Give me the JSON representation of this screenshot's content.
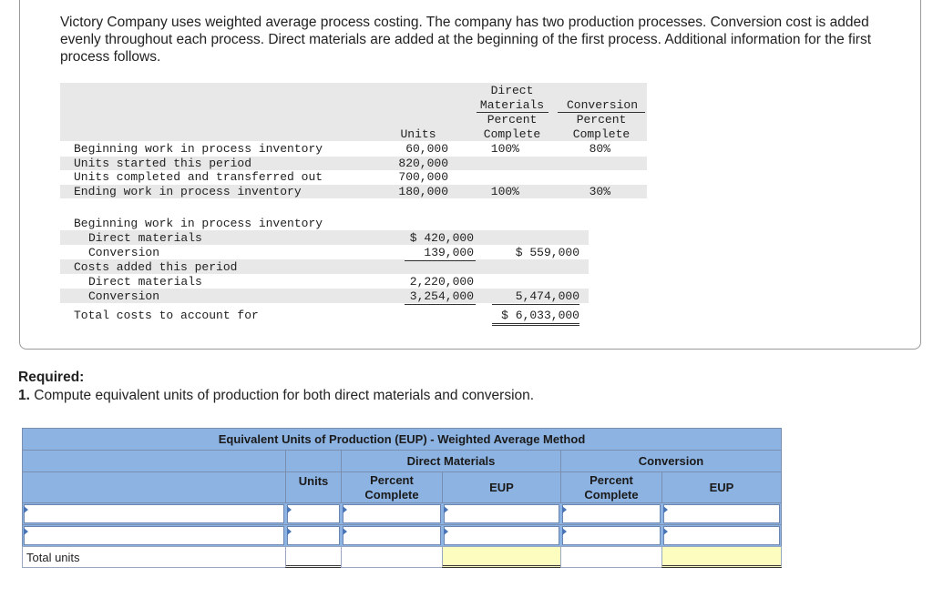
{
  "intro": "Victory Company uses weighted average process costing. The company has two production processes. Conversion cost is added evenly throughout each process. Direct materials are added at the beginning of the first process. Additional information for the first process follows.",
  "info_table": {
    "headers": {
      "units": "Units",
      "dm_1": "Direct",
      "dm_2": "Materials",
      "dm_3": "Percent",
      "dm_4": "Complete",
      "conv_1": "Conversion",
      "conv_2": "Percent",
      "conv_3": "Complete"
    },
    "rows": [
      {
        "label": "Beginning work in process inventory",
        "units": "60,000",
        "dm": "100%",
        "conv": "80%"
      },
      {
        "label": "Units started this period",
        "units": "820,000",
        "dm": "",
        "conv": ""
      },
      {
        "label": "Units completed and transferred out",
        "units": "700,000",
        "dm": "",
        "conv": ""
      },
      {
        "label": "Ending work in process inventory",
        "units": "180,000",
        "dm": "100%",
        "conv": "30%"
      }
    ]
  },
  "cost_table": {
    "bwip_label": "Beginning work in process inventory",
    "bwip_dm_label": "Direct materials",
    "bwip_dm": "$ 420,000",
    "bwip_conv_label": "Conversion",
    "bwip_conv": "139,000",
    "bwip_total": "$ 559,000",
    "added_label": "Costs added this period",
    "added_dm_label": "Direct materials",
    "added_dm": "2,220,000",
    "added_conv_label": "Conversion",
    "added_conv": "3,254,000",
    "added_total": "5,474,000",
    "total_label": "Total costs to account for",
    "total": "$ 6,033,000"
  },
  "required": {
    "title": "Required:",
    "number": "1.",
    "text": " Compute equivalent units of production for both direct materials and conversion."
  },
  "eup_table": {
    "title": "Equivalent Units of Production (EUP) - Weighted Average Method",
    "dm_group": "Direct Materials",
    "conv_group": "Conversion",
    "col_units": "Units",
    "col_pct_1": "Percent",
    "col_pct_2": "Complete",
    "col_eup": "EUP",
    "total_label": "Total units"
  },
  "colors": {
    "header_blue": "#8db3e2",
    "total_yellow": "#fdfdc0",
    "row_shade": "#e8e8e8"
  }
}
